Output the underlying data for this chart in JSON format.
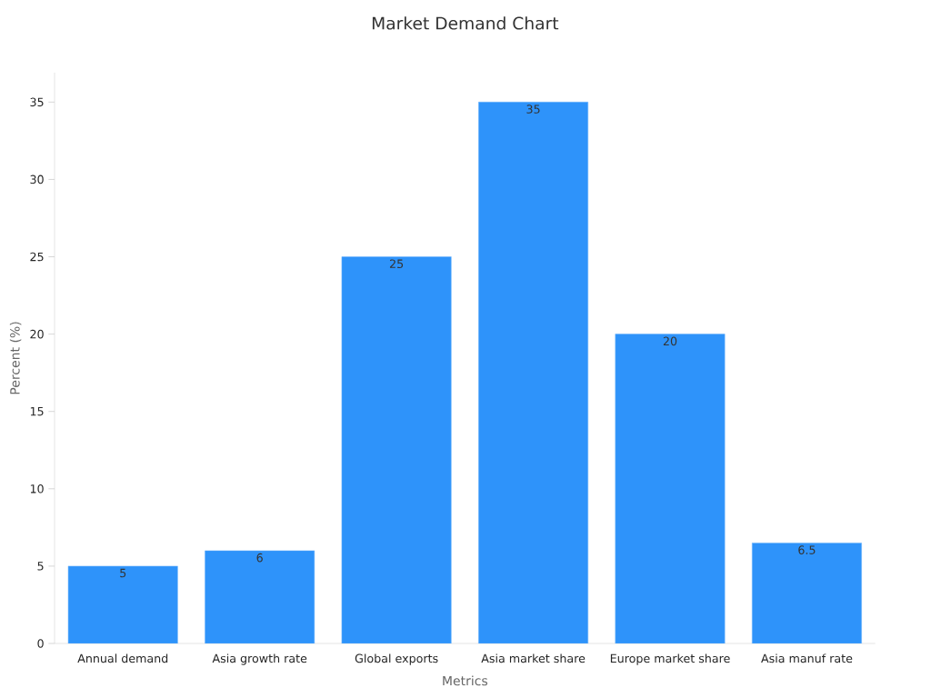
{
  "chart_data": {
    "type": "bar",
    "title": "Market Demand Chart",
    "xlabel": "Metrics",
    "ylabel": "Percent (%)",
    "categories": [
      "Annual demand",
      "Asia growth rate",
      "Global exports",
      "Asia market share",
      "Europe market share",
      "Asia manuf rate"
    ],
    "values": [
      5,
      6,
      25,
      35,
      20,
      6.5
    ],
    "color": "#2e93fa",
    "ylim": [
      0,
      36.9
    ],
    "yticks": [
      0,
      5,
      10,
      15,
      20,
      25,
      30,
      35
    ],
    "grid": false,
    "data_labels": true
  }
}
